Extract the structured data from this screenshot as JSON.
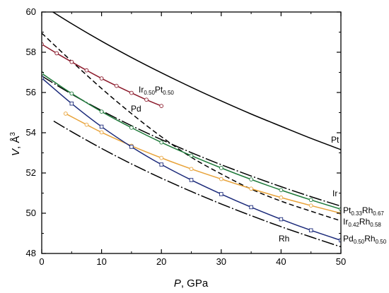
{
  "chart_data": {
    "type": "line",
    "title": "",
    "xlabel": "P, GPa",
    "xlabel_italic": "P",
    "xlabel_rest": ", GPa",
    "ylabel": "V, Å3",
    "ylabel_italic": "V",
    "ylabel_rest": ", Å",
    "ylabel_sup": "3",
    "xlim": [
      0,
      50
    ],
    "ylim": [
      48,
      60
    ],
    "xticks": [
      0,
      10,
      20,
      30,
      40,
      50
    ],
    "yticks": [
      48,
      50,
      52,
      54,
      56,
      58,
      60
    ],
    "grid": false,
    "legend": "none",
    "series": [
      {
        "name": "Pt",
        "label_parts": [
          {
            "t": "Pt"
          }
        ],
        "color": "#000000",
        "style": "solid",
        "x": [
          0,
          5,
          10,
          15,
          20,
          25,
          30,
          35,
          40,
          45,
          50
        ],
        "y": [
          60.35,
          59.42,
          58.55,
          57.74,
          56.98,
          56.26,
          55.58,
          54.93,
          54.32,
          53.72,
          53.16
        ]
      },
      {
        "name": "Ir",
        "label_parts": [
          {
            "t": "Ir"
          }
        ],
        "color": "#000000",
        "style": "dashdot",
        "x": [
          0,
          5,
          10,
          15,
          20,
          25,
          30,
          35,
          40,
          45,
          50
        ],
        "y": [
          56.82,
          55.92,
          55.1,
          54.35,
          53.66,
          53.01,
          52.41,
          51.85,
          51.32,
          50.82,
          50.35
        ]
      },
      {
        "name": "Rh",
        "label_parts": [
          {
            "t": "Rh"
          }
        ],
        "color": "#000000",
        "style": "dashdot",
        "x": [
          2,
          5,
          10,
          15,
          20,
          25,
          30,
          35,
          40,
          45,
          50
        ],
        "y": [
          54.58,
          54.05,
          53.22,
          52.45,
          51.74,
          51.08,
          50.46,
          49.88,
          49.33,
          48.82,
          48.33
        ]
      },
      {
        "name": "Pd",
        "label_parts": [
          {
            "t": "Pd"
          }
        ],
        "color": "#000000",
        "style": "dashed",
        "x": [
          0,
          5,
          10,
          15,
          20,
          25,
          30,
          35,
          40,
          45,
          50
        ],
        "y": [
          58.95,
          57.55,
          56.2,
          54.95,
          53.8,
          52.78,
          51.95,
          51.2,
          50.6,
          50.1,
          49.62
        ]
      },
      {
        "name": "Ir0.50Pt0.50",
        "label_parts": [
          {
            "t": "Ir"
          },
          {
            "t": "0.50",
            "sub": true
          },
          {
            "t": "Pt"
          },
          {
            "t": "0.50",
            "sub": true
          }
        ],
        "color": "#8b1a2b",
        "style": "solid",
        "marker": "circle",
        "x": [
          0,
          2.5,
          5,
          7.5,
          10,
          12.5,
          15,
          17.5,
          20
        ],
        "y": [
          58.4,
          57.95,
          57.52,
          57.1,
          56.7,
          56.33,
          55.98,
          55.64,
          55.33
        ]
      },
      {
        "name": "Pt0.33Rh0.67",
        "label_parts": [
          {
            "t": "Pt"
          },
          {
            "t": "0.33",
            "sub": true
          },
          {
            "t": "Rh"
          },
          {
            "t": "0.67",
            "sub": true
          }
        ],
        "color": "#1e7a3a",
        "style": "solid",
        "marker": "circle",
        "x": [
          0,
          5,
          10,
          15,
          20,
          25,
          30,
          35,
          40,
          45,
          50
        ],
        "y": [
          56.95,
          55.95,
          55.05,
          54.25,
          53.52,
          52.86,
          52.25,
          51.68,
          51.15,
          50.66,
          50.2
        ]
      },
      {
        "name": "Ir0.42Rh0.58",
        "label_parts": [
          {
            "t": "Ir"
          },
          {
            "t": "0.42",
            "sub": true
          },
          {
            "t": "Rh"
          },
          {
            "t": "0.58",
            "sub": true
          }
        ],
        "color": "#e8a33a",
        "style": "solid",
        "marker": "circle",
        "x": [
          4,
          7.5,
          10,
          15,
          20,
          25,
          30,
          35,
          40,
          45,
          50
        ],
        "y": [
          54.95,
          54.4,
          54.02,
          53.35,
          52.75,
          52.2,
          51.7,
          51.22,
          50.78,
          50.38,
          50.0
        ]
      },
      {
        "name": "Pd0.50Rh0.50",
        "label_parts": [
          {
            "t": "Pd"
          },
          {
            "t": "0.50",
            "sub": true
          },
          {
            "t": "Rh"
          },
          {
            "t": "0.50",
            "sub": true
          }
        ],
        "color": "#1b2a7a",
        "style": "solid",
        "marker": "square",
        "x": [
          0,
          5,
          10,
          15,
          20,
          25,
          30,
          35,
          40,
          45,
          50
        ],
        "y": [
          56.72,
          55.45,
          54.3,
          53.3,
          52.42,
          51.65,
          50.95,
          50.3,
          49.7,
          49.15,
          48.65
        ]
      }
    ]
  }
}
